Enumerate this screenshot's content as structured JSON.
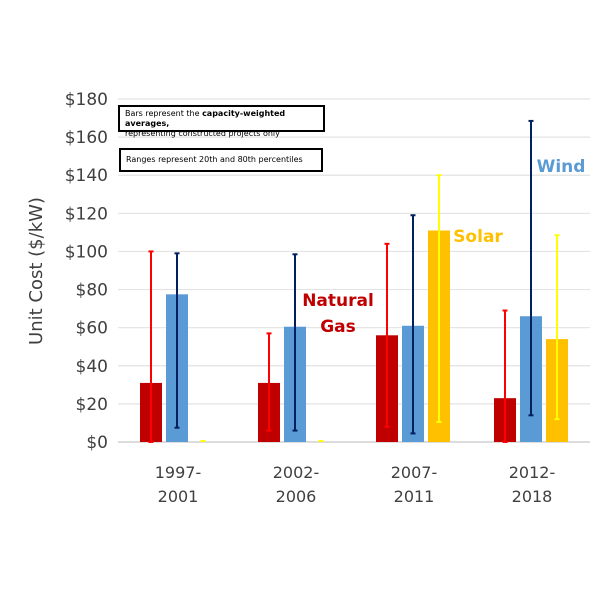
{
  "chart_data": {
    "type": "bar",
    "title": "",
    "xlabel": "",
    "ylabel": "Unit Cost ($/kW)",
    "ylim": [
      0,
      180
    ],
    "ytick_step": 20,
    "ytick_labels": [
      "$0",
      "$20",
      "$40",
      "$60",
      "$80",
      "$100",
      "$120",
      "$140",
      "$160",
      "$180"
    ],
    "grid": true,
    "categories": [
      [
        "1997-",
        "2001"
      ],
      [
        "2002-",
        "2006"
      ],
      [
        "2007-",
        "2011"
      ],
      [
        "2012-",
        "2018"
      ]
    ],
    "series": [
      {
        "name": "Natural Gas",
        "label_lines": [
          "Natural",
          "Gas"
        ],
        "bar_color": "#C00000",
        "range_color": "#FF0000",
        "values": [
          31,
          31,
          56,
          23
        ],
        "range_low": [
          0,
          6,
          8,
          0
        ],
        "range_high": [
          100,
          57,
          104,
          69
        ]
      },
      {
        "name": "Wind",
        "label_lines": [
          "Wind"
        ],
        "bar_color": "#5B9BD5",
        "range_color": "#002060",
        "values": [
          77.5,
          60.5,
          61,
          66
        ],
        "range_low": [
          7.5,
          6,
          4.5,
          14
        ],
        "range_high": [
          99,
          98.5,
          119,
          168.5
        ]
      },
      {
        "name": "Solar",
        "label_lines": [
          "Solar"
        ],
        "bar_color": "#FFC000",
        "range_color": "#FFFF00",
        "values": [
          0,
          0,
          111,
          54
        ],
        "range_low": [
          0,
          0,
          10.5,
          12
        ],
        "range_high": [
          0,
          0,
          140,
          108.5
        ]
      }
    ],
    "annotations": [
      {
        "text_prefix": "Bars represent the ",
        "text_bold": "capacity-weighted averages,",
        "text_suffix": "representing constructed projects only"
      },
      {
        "text": "Ranges represent 20th and 80th percentiles"
      }
    ],
    "legend": "inline-labels"
  }
}
